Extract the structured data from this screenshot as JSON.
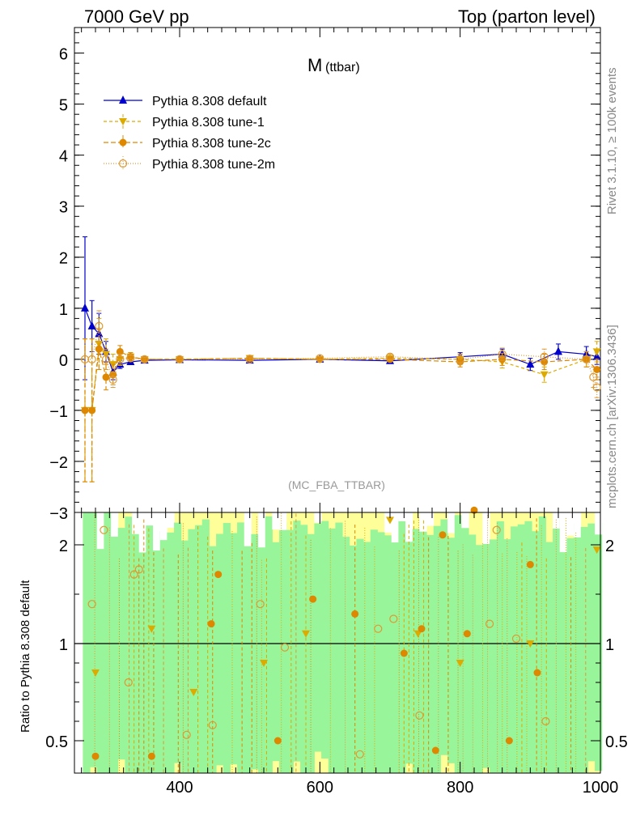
{
  "header": {
    "left": "7000 GeV pp",
    "right": "Top (parton level)"
  },
  "side_labels": {
    "rivet": "Rivet 3.1.10, ≥ 100k events",
    "mcplots": "mcplots.cern.ch [arXiv:1306.3436]"
  },
  "chart_data": [
    {
      "type": "line",
      "panel": "main",
      "title": "M",
      "title_sub": "(ttbar)",
      "analysis_tag": "(MC_FBA_TTBAR)",
      "ylim": [
        -3,
        6.5
      ],
      "xlim": [
        250,
        1000
      ],
      "y_ticks": [
        "6",
        "5",
        "4",
        "3",
        "2",
        "1",
        "0",
        "−1",
        "−2",
        "−3"
      ],
      "y_tick_values": [
        6,
        5,
        4,
        3,
        2,
        1,
        0,
        -1,
        -2,
        -3
      ],
      "legend_position": "top-left",
      "colors": {
        "default": "#0000cc",
        "tune1": "#ddaa00",
        "tune2c": "#dd8800",
        "tune2m": "#dd9933"
      },
      "series": [
        {
          "name": "Pythia 8.308 default",
          "marker": "triangle-up",
          "x": [
            265,
            275,
            285,
            295,
            305,
            315,
            330,
            350,
            400,
            500,
            600,
            700,
            800,
            860,
            900,
            940,
            980,
            995
          ],
          "y": [
            1.0,
            0.65,
            0.5,
            0.15,
            -0.25,
            -0.1,
            -0.05,
            -0.02,
            -0.01,
            -0.02,
            0.0,
            -0.03,
            0.05,
            0.1,
            -0.1,
            0.15,
            0.1,
            0.05
          ],
          "err": [
            1.4,
            0.5,
            0.4,
            0.2,
            0.15,
            0.08,
            0.05,
            0.03,
            0.02,
            0.03,
            0.03,
            0.05,
            0.08,
            0.1,
            0.12,
            0.15,
            0.15,
            0.15
          ]
        },
        {
          "name": "Pythia 8.308 tune-1",
          "marker": "triangle-down",
          "x": [
            265,
            275,
            285,
            295,
            305,
            315,
            330,
            350,
            400,
            500,
            600,
            700,
            800,
            860,
            920,
            980,
            995
          ],
          "y": [
            -1.0,
            -1.0,
            0.3,
            0.1,
            -0.1,
            0.0,
            0.05,
            0.0,
            0.0,
            0.02,
            0.0,
            0.02,
            0.0,
            -0.05,
            -0.3,
            0.0,
            0.15
          ],
          "err": [
            1.4,
            1.4,
            0.5,
            0.3,
            0.2,
            0.12,
            0.08,
            0.05,
            0.03,
            0.03,
            0.03,
            0.05,
            0.1,
            0.12,
            0.15,
            0.15,
            0.2
          ]
        },
        {
          "name": "Pythia 8.308 tune-2c",
          "marker": "circle",
          "x": [
            265,
            275,
            285,
            295,
            305,
            315,
            330,
            350,
            400,
            500,
            600,
            700,
            800,
            860,
            920,
            980,
            995
          ],
          "y": [
            -1.0,
            -1.0,
            0.2,
            -0.35,
            -0.3,
            0.15,
            0.05,
            0.0,
            0.0,
            0.02,
            0.0,
            0.0,
            -0.05,
            0.0,
            -0.05,
            0.0,
            -0.2
          ],
          "err": [
            1.4,
            1.4,
            0.4,
            0.25,
            0.2,
            0.12,
            0.08,
            0.05,
            0.03,
            0.03,
            0.03,
            0.05,
            0.1,
            0.12,
            0.15,
            0.15,
            0.2
          ]
        },
        {
          "name": "Pythia 8.308 tune-2m",
          "marker": "circle-open",
          "x": [
            265,
            275,
            285,
            295,
            305,
            315,
            330,
            350,
            400,
            500,
            600,
            700,
            800,
            860,
            920,
            980,
            990,
            995
          ],
          "y": [
            0.0,
            0.0,
            0.65,
            0.0,
            -0.4,
            0.0,
            0.02,
            0.0,
            0.0,
            0.0,
            0.02,
            0.05,
            0.0,
            0.1,
            0.05,
            0.0,
            -0.35,
            -0.55
          ],
          "err": [
            0.0,
            0.0,
            0.3,
            0.2,
            0.15,
            0.1,
            0.06,
            0.04,
            0.03,
            0.03,
            0.03,
            0.05,
            0.1,
            0.12,
            0.15,
            0.15,
            0.2,
            0.2
          ]
        }
      ]
    },
    {
      "type": "line",
      "panel": "ratio",
      "ylabel": "Ratio to Pythia 8.308 default",
      "ylim": [
        0.4,
        2.4
      ],
      "xlim": [
        250,
        1000
      ],
      "x_ticks": [
        "400",
        "600",
        "800",
        "1000"
      ],
      "x_tick_values": [
        400,
        600,
        800,
        1000
      ],
      "y_ticks": [
        "2",
        "1",
        "0.5"
      ],
      "y_tick_values": [
        2,
        1,
        0.5
      ],
      "colors": {
        "band_inner": "#99f599",
        "band_outer": "#ffff99",
        "reference": "#000000"
      },
      "series": [
        {
          "name": "Pythia 8.308 tune-1",
          "marker": "triangle-down",
          "x": [
            280,
            360,
            420,
            520,
            580,
            700,
            740,
            800,
            900,
            995
          ],
          "y": [
            0.85,
            1.15,
            0.75,
            0.9,
            1.1,
            2.25,
            1.1,
            0.9,
            1.0,
            1.95
          ]
        },
        {
          "name": "Pythia 8.308 tune-2c",
          "marker": "circle",
          "x": [
            280,
            360,
            445,
            455,
            540,
            590,
            650,
            720,
            745,
            765,
            775,
            810,
            820,
            870,
            900,
            910
          ],
          "y": [
            0.42,
            0.42,
            1.2,
            1.7,
            0.5,
            1.45,
            1.3,
            0.95,
            1.15,
            0.45,
            2.1,
            1.1,
            2.35,
            0.5,
            1.8,
            0.85
          ]
        },
        {
          "name": "Pythia 8.308 tune-2m",
          "marker": "circle-open",
          "x": [
            275,
            292,
            327,
            335,
            342,
            410,
            447,
            515,
            550,
            657,
            683,
            705,
            742,
            842,
            852,
            880,
            922
          ],
          "y": [
            1.4,
            2.15,
            0.8,
            1.7,
            1.75,
            0.53,
            0.58,
            1.4,
            0.98,
            0.43,
            1.15,
            1.25,
            0.63,
            1.2,
            2.15,
            1.05,
            0.6
          ]
        }
      ]
    }
  ]
}
